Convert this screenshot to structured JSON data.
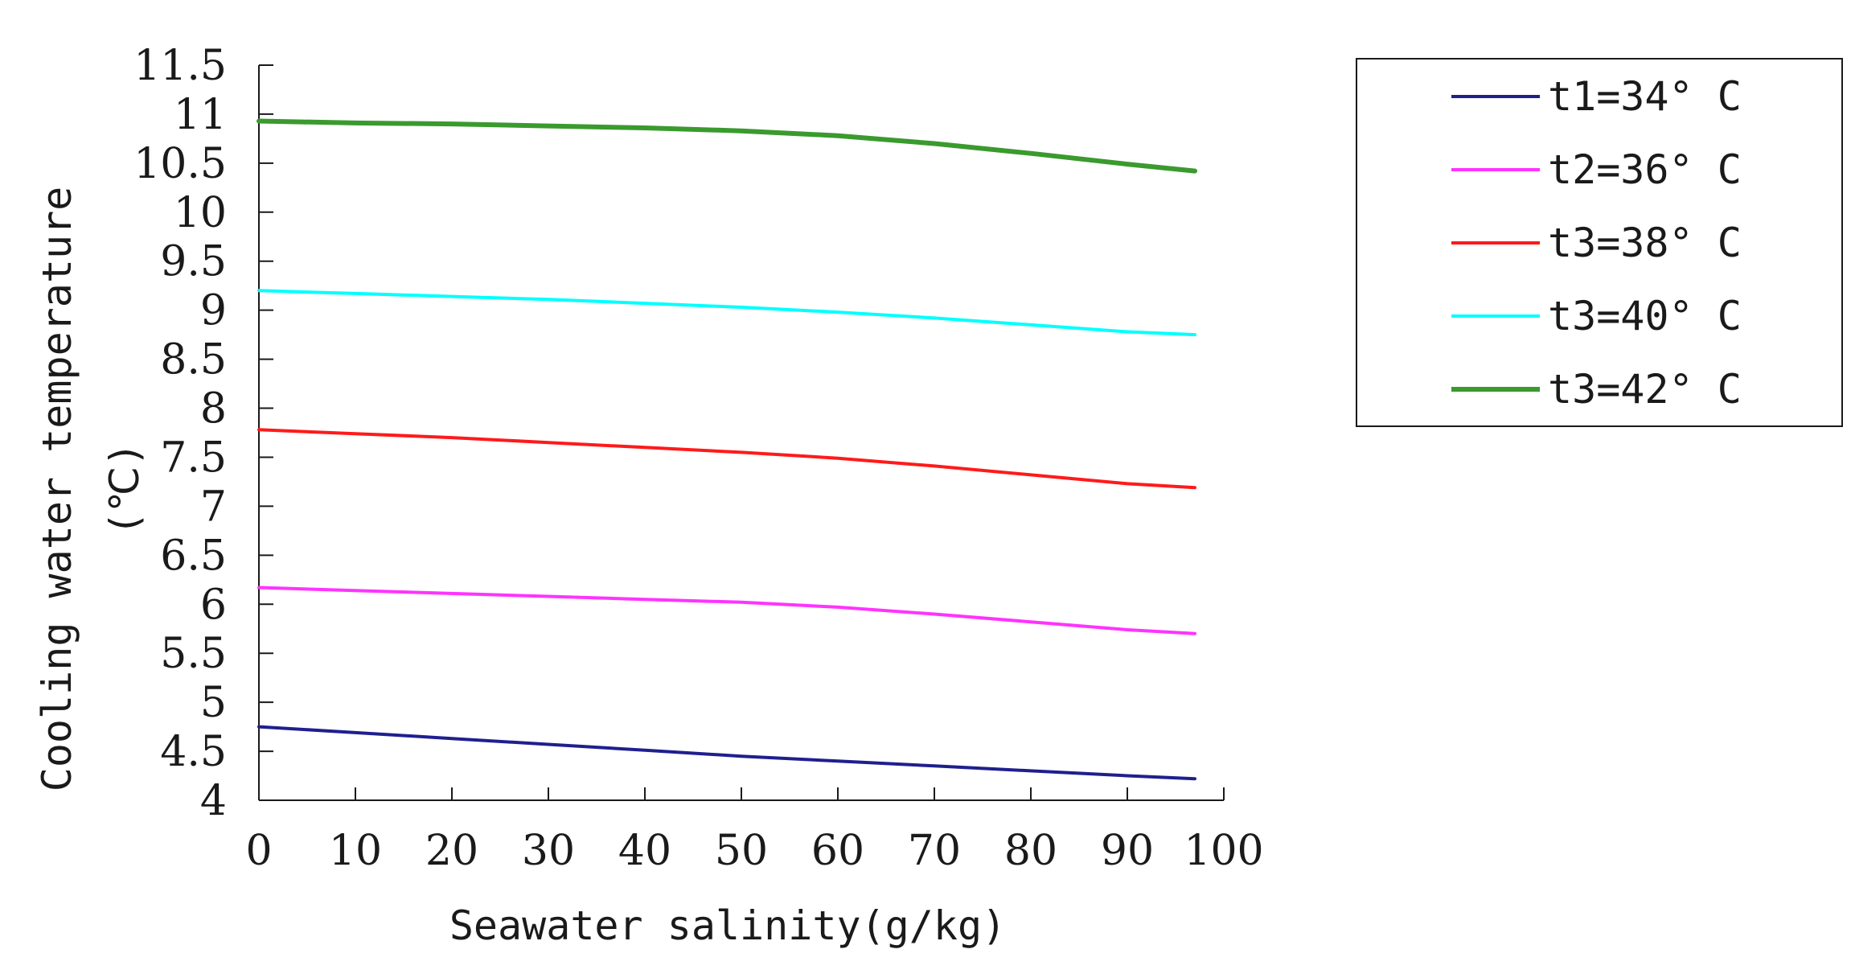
{
  "chart_data": {
    "type": "line",
    "xlabel": "Seawater salinity(g/kg)",
    "ylabel_line1": "Cooling water temperature",
    "ylabel_line2": "(℃)",
    "xlim": [
      0,
      100
    ],
    "ylim": [
      4,
      11.5
    ],
    "x_ticks": [
      0,
      10,
      20,
      30,
      40,
      50,
      60,
      70,
      80,
      90,
      100
    ],
    "x_tick_labels": [
      "0",
      "10",
      "20",
      "30",
      "40",
      "50",
      "60",
      "70",
      "80",
      "90",
      "100"
    ],
    "y_ticks": [
      4,
      4.5,
      5,
      5.5,
      6,
      6.5,
      7,
      7.5,
      8,
      8.5,
      9,
      9.5,
      10,
      10.5,
      11,
      11.5
    ],
    "y_tick_labels": [
      "4",
      "4.5",
      "5",
      "5.5",
      "6",
      "6.5",
      "7",
      "7.5",
      "8",
      "8.5",
      "9",
      "9.5",
      "10",
      "10.5",
      "11",
      "11.5"
    ],
    "grid": false,
    "legend_position": "top-right",
    "x": [
      0,
      10,
      20,
      30,
      40,
      50,
      60,
      70,
      80,
      90,
      97
    ],
    "series": [
      {
        "name": "t1=34° C",
        "color": "#1f1f8f",
        "values": [
          4.75,
          4.69,
          4.63,
          4.57,
          4.51,
          4.45,
          4.4,
          4.35,
          4.3,
          4.25,
          4.22
        ]
      },
      {
        "name": "t2=36° C",
        "color": "#ff33ff",
        "values": [
          6.17,
          6.14,
          6.11,
          6.08,
          6.05,
          6.02,
          5.97,
          5.9,
          5.82,
          5.74,
          5.7
        ]
      },
      {
        "name": "t3=38° C",
        "color": "#ff1a1a",
        "values": [
          7.78,
          7.74,
          7.7,
          7.65,
          7.6,
          7.55,
          7.49,
          7.41,
          7.32,
          7.23,
          7.19
        ]
      },
      {
        "name": "t3=40° C",
        "color": "#00ffff",
        "values": [
          9.2,
          9.17,
          9.14,
          9.11,
          9.07,
          9.03,
          8.98,
          8.92,
          8.85,
          8.78,
          8.75
        ]
      },
      {
        "name": "t3=42° C",
        "color": "#3a9a2e",
        "values": [
          10.93,
          10.91,
          10.9,
          10.88,
          10.86,
          10.83,
          10.78,
          10.7,
          10.6,
          10.49,
          10.42
        ]
      }
    ]
  }
}
